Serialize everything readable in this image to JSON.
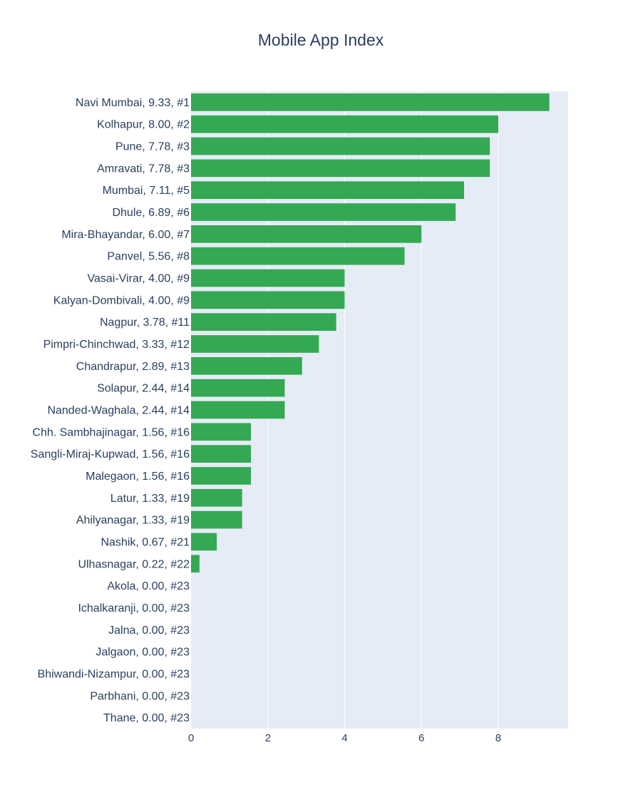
{
  "chart_data": {
    "type": "bar",
    "orientation": "horizontal",
    "title": "Mobile App Index",
    "xlabel": "",
    "ylabel": "",
    "xlim": [
      0,
      9.82
    ],
    "x_ticks": [
      0,
      2,
      4,
      6,
      8
    ],
    "grid": true,
    "bar_color": "#34a853",
    "plot_bg": "#e5ecf6",
    "categories": [
      "Navi Mumbai, 9.33, #1",
      "Kolhapur, 8.00, #2",
      "Pune, 7.78, #3",
      "Amravati, 7.78, #3",
      "Mumbai, 7.11, #5",
      "Dhule, 6.89, #6",
      "Mira-Bhayandar, 6.00, #7",
      "Panvel, 5.56, #8",
      "Vasai-Virar, 4.00, #9",
      "Kalyan-Dombivali, 4.00, #9",
      "Nagpur, 3.78, #11",
      "Pimpri-Chinchwad, 3.33, #12",
      "Chandrapur, 2.89, #13",
      "Solapur, 2.44, #14",
      "Nanded-Waghala, 2.44, #14",
      "Chh. Sambhajinagar, 1.56, #16",
      "Sangli-Miraj-Kupwad, 1.56, #16",
      "Malegaon, 1.56, #16",
      "Latur, 1.33, #19",
      "Ahilyanagar, 1.33, #19",
      "Nashik, 0.67, #21",
      "Ulhasnagar, 0.22, #22",
      "Akola, 0.00, #23",
      "Ichalkaranji, 0.00, #23",
      "Jalna, 0.00, #23",
      "Jalgaon, 0.00, #23",
      "Bhiwandi-Nizampur, 0.00, #23",
      "Parbhani, 0.00, #23",
      "Thane, 0.00, #23"
    ],
    "values": [
      9.33,
      8.0,
      7.78,
      7.78,
      7.11,
      6.89,
      6.0,
      5.56,
      4.0,
      4.0,
      3.78,
      3.33,
      2.89,
      2.44,
      2.44,
      1.56,
      1.56,
      1.56,
      1.33,
      1.33,
      0.67,
      0.22,
      0.0,
      0.0,
      0.0,
      0.0,
      0.0,
      0.0,
      0.0
    ]
  }
}
